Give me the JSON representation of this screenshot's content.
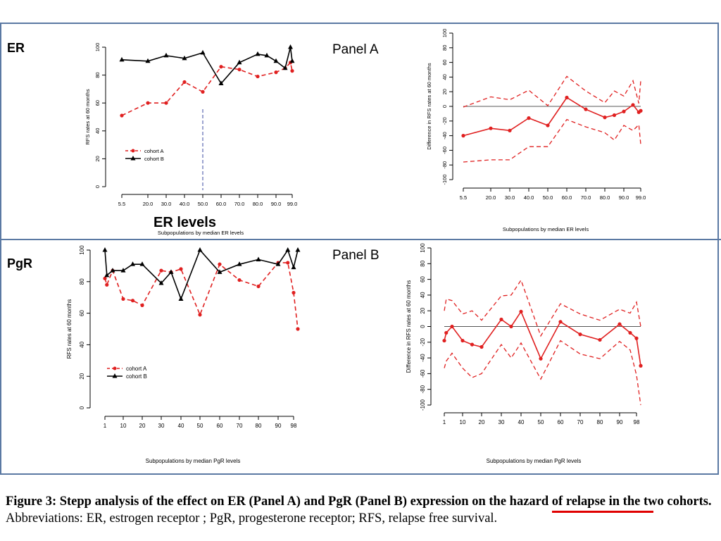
{
  "labels": {
    "er": "ER",
    "pgr": "PgR",
    "er_levels": "ER levels",
    "panel_a": "Panel A",
    "panel_b": "Panel B"
  },
  "caption": {
    "bold": "Figure 3: Stepp analysis of the effect on ER (Panel A) and PgR (Panel B) expression on the hazard of relapse in the two cohorts.",
    "rest": "Abbreviations: ER, estrogen receptor ; PgR, progesterone receptor; RFS, relapse free survival."
  },
  "colors": {
    "cohort_a": "#e02020",
    "cohort_b": "#000000",
    "frame": "#5b79a3",
    "underline": "#e00000"
  },
  "chart_data": [
    {
      "type": "line",
      "xlabel": "Subpopulations by median ER levels",
      "ylabel": "RFS rates at 60 months",
      "ylim": [
        0,
        100
      ],
      "yticks": [
        0,
        20,
        40,
        60,
        80,
        100
      ],
      "xtick_labels": [
        "5.5",
        "20.0",
        "30.0",
        "40.0",
        "50.0",
        "60.0",
        "70.0",
        "80.0",
        "90.0",
        "99.0"
      ],
      "legend": [
        "cohort A",
        "cohort B"
      ],
      "legend_position": "bottom-left",
      "vertical_marker": 50,
      "series": [
        {
          "name": "cohort A",
          "x": [
            5.5,
            20,
            30,
            40,
            50,
            60,
            70,
            80,
            90,
            95,
            98,
            99
          ],
          "values": [
            51,
            60,
            60,
            75,
            68,
            86,
            84,
            79,
            82,
            85,
            89,
            83
          ]
        },
        {
          "name": "cohort B",
          "x": [
            5.5,
            20,
            30,
            40,
            50,
            60,
            70,
            80,
            85,
            90,
            95,
            98,
            99
          ],
          "values": [
            91,
            90,
            94,
            92,
            96,
            74,
            89,
            95,
            94,
            90,
            85,
            100,
            90
          ]
        }
      ]
    },
    {
      "type": "line",
      "xlabel": "Subpopulations by median ER levels",
      "ylabel": "Difference in RFS rates at 60 months",
      "ylim": [
        -100,
        100
      ],
      "yticks": [
        -100,
        -80,
        -60,
        -40,
        -20,
        0,
        20,
        40,
        60,
        80,
        100
      ],
      "xtick_labels": [
        "5.5",
        "20.0",
        "30.0",
        "40.0",
        "50.0",
        "60.0",
        "70.0",
        "80.0",
        "90.0",
        "99.0"
      ],
      "series": [
        {
          "name": "difference",
          "x": [
            5.5,
            20,
            30,
            40,
            50,
            60,
            70,
            80,
            85,
            90,
            95,
            98,
            99
          ],
          "values": [
            -40,
            -30,
            -33,
            -16,
            -26,
            12,
            -4,
            -15,
            -12,
            -7,
            2,
            -8,
            -6
          ]
        },
        {
          "name": "upper",
          "x": [
            5.5,
            20,
            30,
            40,
            50,
            60,
            70,
            80,
            85,
            90,
            95,
            98,
            99
          ],
          "values": [
            -1,
            13,
            9,
            22,
            1,
            41,
            21,
            5,
            21,
            14,
            35,
            4,
            35
          ]
        },
        {
          "name": "lower",
          "x": [
            5.5,
            20,
            30,
            40,
            50,
            60,
            70,
            80,
            85,
            90,
            95,
            98,
            99
          ],
          "values": [
            -76,
            -73,
            -73,
            -55,
            -55,
            -18,
            -28,
            -36,
            -46,
            -26,
            -33,
            -25,
            -52
          ]
        }
      ]
    },
    {
      "type": "line",
      "xlabel": "Subpopulations by median PgR levels",
      "ylabel": "RFS rates at 60 months",
      "ylim": [
        0,
        100
      ],
      "yticks": [
        0,
        20,
        40,
        60,
        80,
        100
      ],
      "xtick_labels": [
        "1",
        "10",
        "20",
        "30",
        "40",
        "50",
        "60",
        "70",
        "80",
        "90",
        "98"
      ],
      "legend": [
        "cohort A",
        "cohort B"
      ],
      "legend_position": "bottom-left",
      "series": [
        {
          "name": "cohort A",
          "x": [
            1,
            2,
            5,
            10,
            15,
            20,
            30,
            35,
            40,
            50,
            60,
            70,
            80,
            90,
            95,
            98,
            100
          ],
          "values": [
            82,
            78,
            87,
            69,
            68,
            65,
            87,
            86,
            88,
            59,
            91,
            81,
            77,
            92,
            92,
            73,
            50
          ]
        },
        {
          "name": "cohort B",
          "x": [
            1,
            2,
            5,
            10,
            15,
            20,
            30,
            35,
            40,
            50,
            60,
            70,
            80,
            90,
            95,
            98,
            100
          ],
          "values": [
            100,
            84,
            87,
            87,
            91,
            91,
            79,
            86,
            69,
            100,
            86,
            91,
            94,
            91,
            100,
            89,
            100
          ]
        }
      ]
    },
    {
      "type": "line",
      "xlabel": "Subpopulations by median PgR levels",
      "ylabel": "Difference in RFS rates at 60 months",
      "ylim": [
        -100,
        100
      ],
      "yticks": [
        -100,
        -80,
        -60,
        -40,
        -20,
        0,
        20,
        40,
        60,
        80,
        100
      ],
      "xtick_labels": [
        "1",
        "10",
        "20",
        "30",
        "40",
        "50",
        "60",
        "70",
        "80",
        "90",
        "98"
      ],
      "series": [
        {
          "name": "difference",
          "x": [
            1,
            2,
            5,
            10,
            15,
            20,
            30,
            35,
            40,
            50,
            60,
            70,
            80,
            90,
            95,
            98,
            100
          ],
          "values": [
            -18,
            -8,
            0,
            -18,
            -23,
            -26,
            9,
            0,
            19,
            -41,
            6,
            -10,
            -17,
            3,
            -8,
            -15,
            -50
          ]
        },
        {
          "name": "upper",
          "x": [
            1,
            2,
            5,
            10,
            15,
            20,
            30,
            35,
            40,
            50,
            60,
            70,
            80,
            90,
            95,
            98,
            100
          ],
          "values": [
            20,
            35,
            33,
            16,
            20,
            8,
            39,
            40,
            59,
            -12,
            29,
            16,
            8,
            22,
            17,
            31,
            0
          ]
        },
        {
          "name": "lower",
          "x": [
            1,
            2,
            5,
            10,
            15,
            20,
            30,
            35,
            40,
            50,
            60,
            70,
            80,
            90,
            95,
            98,
            100
          ],
          "values": [
            -53,
            -44,
            -34,
            -53,
            -65,
            -60,
            -23,
            -40,
            -21,
            -67,
            -18,
            -35,
            -41,
            -19,
            -30,
            -62,
            -100
          ]
        }
      ]
    }
  ]
}
